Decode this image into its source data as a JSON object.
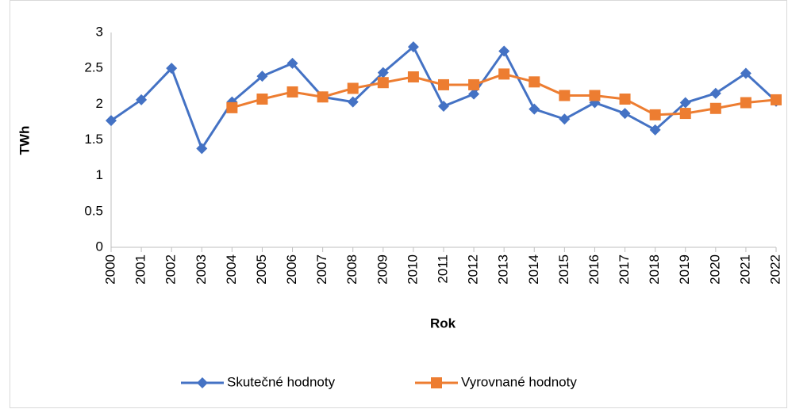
{
  "chart_data": {
    "type": "line",
    "y_label": "TWh",
    "x_label": "Rok",
    "categories": [
      "2000",
      "2001",
      "2002",
      "2003",
      "2004",
      "2005",
      "2006",
      "2007",
      "2008",
      "2009",
      "2010",
      "2011",
      "2012",
      "2013",
      "2014",
      "2015",
      "2016",
      "2017",
      "2018",
      "2019",
      "2020",
      "2021",
      "2022"
    ],
    "series": [
      {
        "name": "Skutečné hodnoty",
        "color": "#4472c4",
        "marker": "diamond",
        "values": [
          1.77,
          2.06,
          2.5,
          1.38,
          2.03,
          2.39,
          2.57,
          2.1,
          2.03,
          2.44,
          2.8,
          1.97,
          2.14,
          2.74,
          1.93,
          1.79,
          2.02,
          1.87,
          1.64,
          2.02,
          2.15,
          2.43,
          2.04
        ]
      },
      {
        "name": "Vyrovnané hodnoty",
        "color": "#ed7d31",
        "marker": "square",
        "values": [
          null,
          null,
          null,
          null,
          1.95,
          2.07,
          2.17,
          2.1,
          2.22,
          2.3,
          2.38,
          2.27,
          2.27,
          2.42,
          2.31,
          2.12,
          2.12,
          2.07,
          1.85,
          1.87,
          1.94,
          2.02,
          2.06
        ]
      }
    ],
    "ylim": [
      0,
      3
    ],
    "yticks": [
      0,
      0.5,
      1,
      1.5,
      2,
      2.5,
      3
    ],
    "grid": false,
    "legend": "bottom"
  }
}
